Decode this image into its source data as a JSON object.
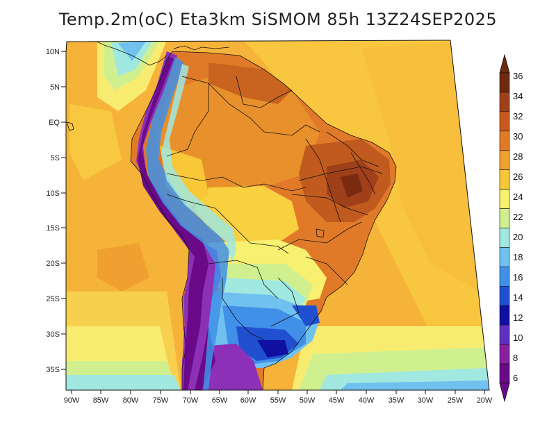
{
  "title": "Temp.2m(oC) Eta3km SiSMOM 85h 13Z24SEP2025",
  "lat_labels": [
    "10N",
    "5N",
    "EQ",
    "5S",
    "10S",
    "15S",
    "20S",
    "25S",
    "30S",
    "35S"
  ],
  "lon_labels": [
    "90W",
    "85W",
    "80W",
    "75W",
    "70W",
    "65W",
    "60W",
    "55W",
    "50W",
    "45W",
    "40W",
    "35W",
    "30W",
    "25W",
    "20W"
  ],
  "colorbar": {
    "labels": [
      "36",
      "34",
      "32",
      "30",
      "28",
      "26",
      "24",
      "22",
      "20",
      "18",
      "16",
      "14",
      "12",
      "10",
      "8",
      "6"
    ],
    "colors": [
      "#6e2a0e",
      "#a0401a",
      "#c85a1e",
      "#e07a28",
      "#f0a030",
      "#f8c838",
      "#f8f070",
      "#d0f090",
      "#a0e8e0",
      "#70c0f0",
      "#4090e8",
      "#2050d0",
      "#1010a0",
      "#6030c0",
      "#8820a0",
      "#6a0a88"
    ]
  }
}
